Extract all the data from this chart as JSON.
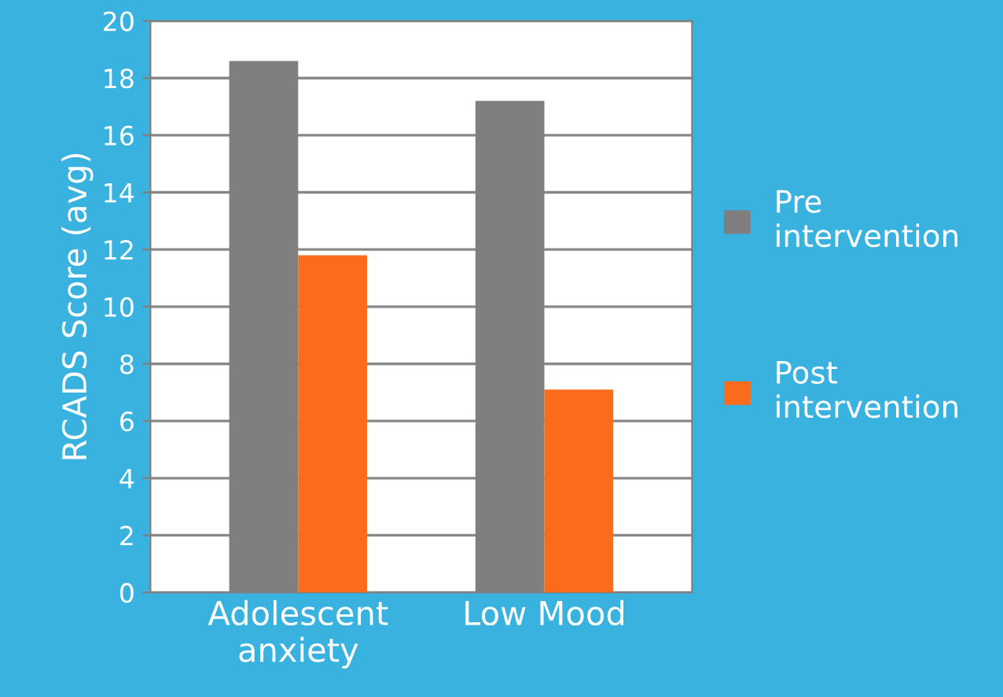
{
  "chart_data": {
    "type": "bar",
    "ylabel": "RCADS Score (avg)",
    "categories": [
      "Adolescent\nanxiety",
      "Low Mood"
    ],
    "series": [
      {
        "name": "Pre\nintervention",
        "color": "#7f7f7f",
        "values": [
          18.6,
          17.2
        ]
      },
      {
        "name": "Post\nintervention",
        "color": "#fa6b1c",
        "values": [
          11.8,
          7.1
        ]
      }
    ],
    "ylim": [
      0,
      20
    ],
    "yticks": [
      0,
      2,
      4,
      6,
      8,
      10,
      12,
      14,
      16,
      18,
      20
    ],
    "grid": "y",
    "legend": "right"
  }
}
